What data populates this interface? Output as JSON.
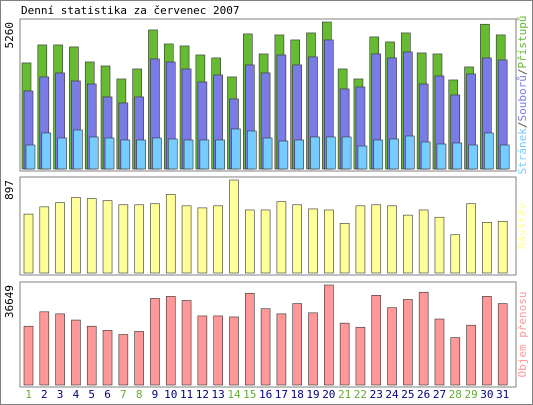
{
  "chart_data": [
    {
      "type": "bar",
      "title": "Denní statistika za červenec 2007",
      "legend_separator": "/",
      "ylim": [
        0,
        5260
      ],
      "yticks": [
        5260
      ],
      "series": [
        {
          "name": "Přístupů",
          "color": "#66bb33",
          "values": [
            3795,
            4439,
            4439,
            4368,
            3831,
            3687,
            3222,
            3580,
            4976,
            4475,
            4403,
            4081,
            3974,
            3294,
            4833,
            4117,
            4797,
            4618,
            4869,
            5260,
            3580,
            3222,
            4726,
            4547,
            4869,
            4153,
            4117,
            3186,
            3652,
            5180,
            4797
          ]
        },
        {
          "name": "Souborů",
          "color": "#7b7be8",
          "values": [
            2792,
            3294,
            3437,
            3150,
            3043,
            2578,
            2363,
            2578,
            3938,
            3831,
            3580,
            3115,
            3365,
            2506,
            3723,
            3437,
            4081,
            3723,
            4010,
            4618,
            2864,
            2936,
            4117,
            3974,
            4189,
            3043,
            3329,
            2649,
            3401,
            3974,
            3902
          ]
        },
        {
          "name": "Stránek",
          "color": "#77ccff",
          "values": [
            859,
            1289,
            1110,
            1396,
            1146,
            1110,
            1038,
            1038,
            1110,
            1074,
            1038,
            1038,
            1038,
            1432,
            1360,
            1110,
            1002,
            1038,
            1146,
            1146,
            1146,
            823,
            1038,
            1074,
            1181,
            967,
            895,
            931,
            859,
            1289,
            859
          ]
        }
      ]
    },
    {
      "type": "bar",
      "ylim": [
        0,
        897
      ],
      "yticks": [
        897
      ],
      "series": [
        {
          "name": "Návštěv",
          "color": "#ffff99",
          "values": [
            568,
            638,
            678,
            728,
            718,
            698,
            658,
            658,
            668,
            758,
            648,
            628,
            648,
            897,
            608,
            608,
            688,
            658,
            618,
            608,
            479,
            648,
            658,
            648,
            558,
            608,
            538,
            369,
            668,
            489,
            499
          ]
        }
      ]
    },
    {
      "type": "bar",
      "ylim": [
        0,
        36649
      ],
      "yticks": [
        36649
      ],
      "categories": [
        "1",
        "2",
        "3",
        "4",
        "5",
        "6",
        "7",
        "8",
        "9",
        "10",
        "11",
        "12",
        "13",
        "14",
        "15",
        "16",
        "17",
        "18",
        "19",
        "20",
        "21",
        "22",
        "23",
        "24",
        "25",
        "26",
        "27",
        "28",
        "29",
        "30",
        "31"
      ],
      "category_label_colors": [
        "#66aa33",
        "#000080",
        "#000080",
        "#000080",
        "#000080",
        "#000080",
        "#66aa33",
        "#66aa33",
        "#000080",
        "#000080",
        "#000080",
        "#000080",
        "#000080",
        "#66aa33",
        "#66aa33",
        "#000080",
        "#000080",
        "#000080",
        "#000080",
        "#000080",
        "#66aa33",
        "#66aa33",
        "#000080",
        "#000080",
        "#000080",
        "#000080",
        "#000080",
        "#66aa33",
        "#66aa33",
        "#000080",
        "#000080"
      ],
      "series": [
        {
          "name": "Objem přenosu",
          "color": "#ff9999",
          "values": [
            21535,
            26824,
            26068,
            23801,
            21535,
            20023,
            18512,
            19646,
            31735,
            32491,
            30980,
            25313,
            25313,
            24935,
            33624,
            27957,
            26068,
            29846,
            26446,
            36649,
            22668,
            21157,
            32869,
            28335,
            31357,
            34002,
            24179,
            17379,
            21913,
            32491,
            29846
          ]
        }
      ]
    }
  ]
}
